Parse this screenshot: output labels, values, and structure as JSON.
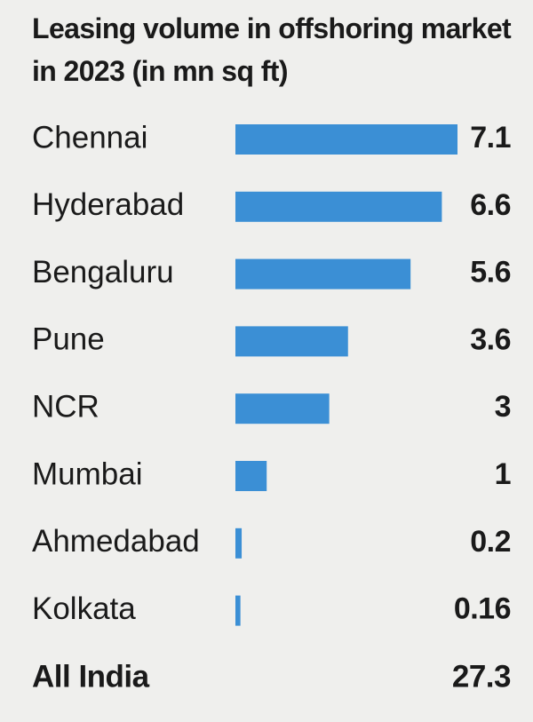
{
  "chart_data": {
    "type": "hbar",
    "title": "Leasing volume in offshoring market in 2023 (in mn sq ft)",
    "categories": [
      "Chennai",
      "Hyderabad",
      "Bengaluru",
      "Pune",
      "NCR",
      "Mumbai",
      "Ahmedabad",
      "Kolkata"
    ],
    "values": [
      7.1,
      6.6,
      5.6,
      3.6,
      3,
      1,
      0.2,
      0.16
    ],
    "color": "#3b8fd5",
    "total": {
      "label": "All India",
      "value": 27.3
    }
  }
}
